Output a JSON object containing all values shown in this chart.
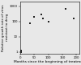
{
  "title": "",
  "xlabel": "Months since the beginning of treatment",
  "ylabel": "Relative growth rate of virus\nresistant to drug",
  "scatter_x": [
    0.5,
    1,
    1.5,
    2,
    2.5,
    35,
    50,
    75,
    80,
    100,
    160,
    190
  ],
  "scatter_y": [
    1,
    1,
    1.2,
    1.1,
    1,
    80,
    200,
    300,
    160,
    100,
    700,
    150
  ],
  "xmin": 0,
  "xmax": 210,
  "ymin": 0.8,
  "ymax": 2000,
  "marker": "s",
  "marker_size": 2.5,
  "marker_color": "#222222",
  "bg_color": "#e8e8e8",
  "xlabel_fontsize": 3.2,
  "ylabel_fontsize": 3.0,
  "tick_fontsize": 2.8,
  "xticks": [
    0,
    50,
    100,
    150,
    200
  ],
  "yticks": [
    1,
    10,
    100,
    1000
  ]
}
